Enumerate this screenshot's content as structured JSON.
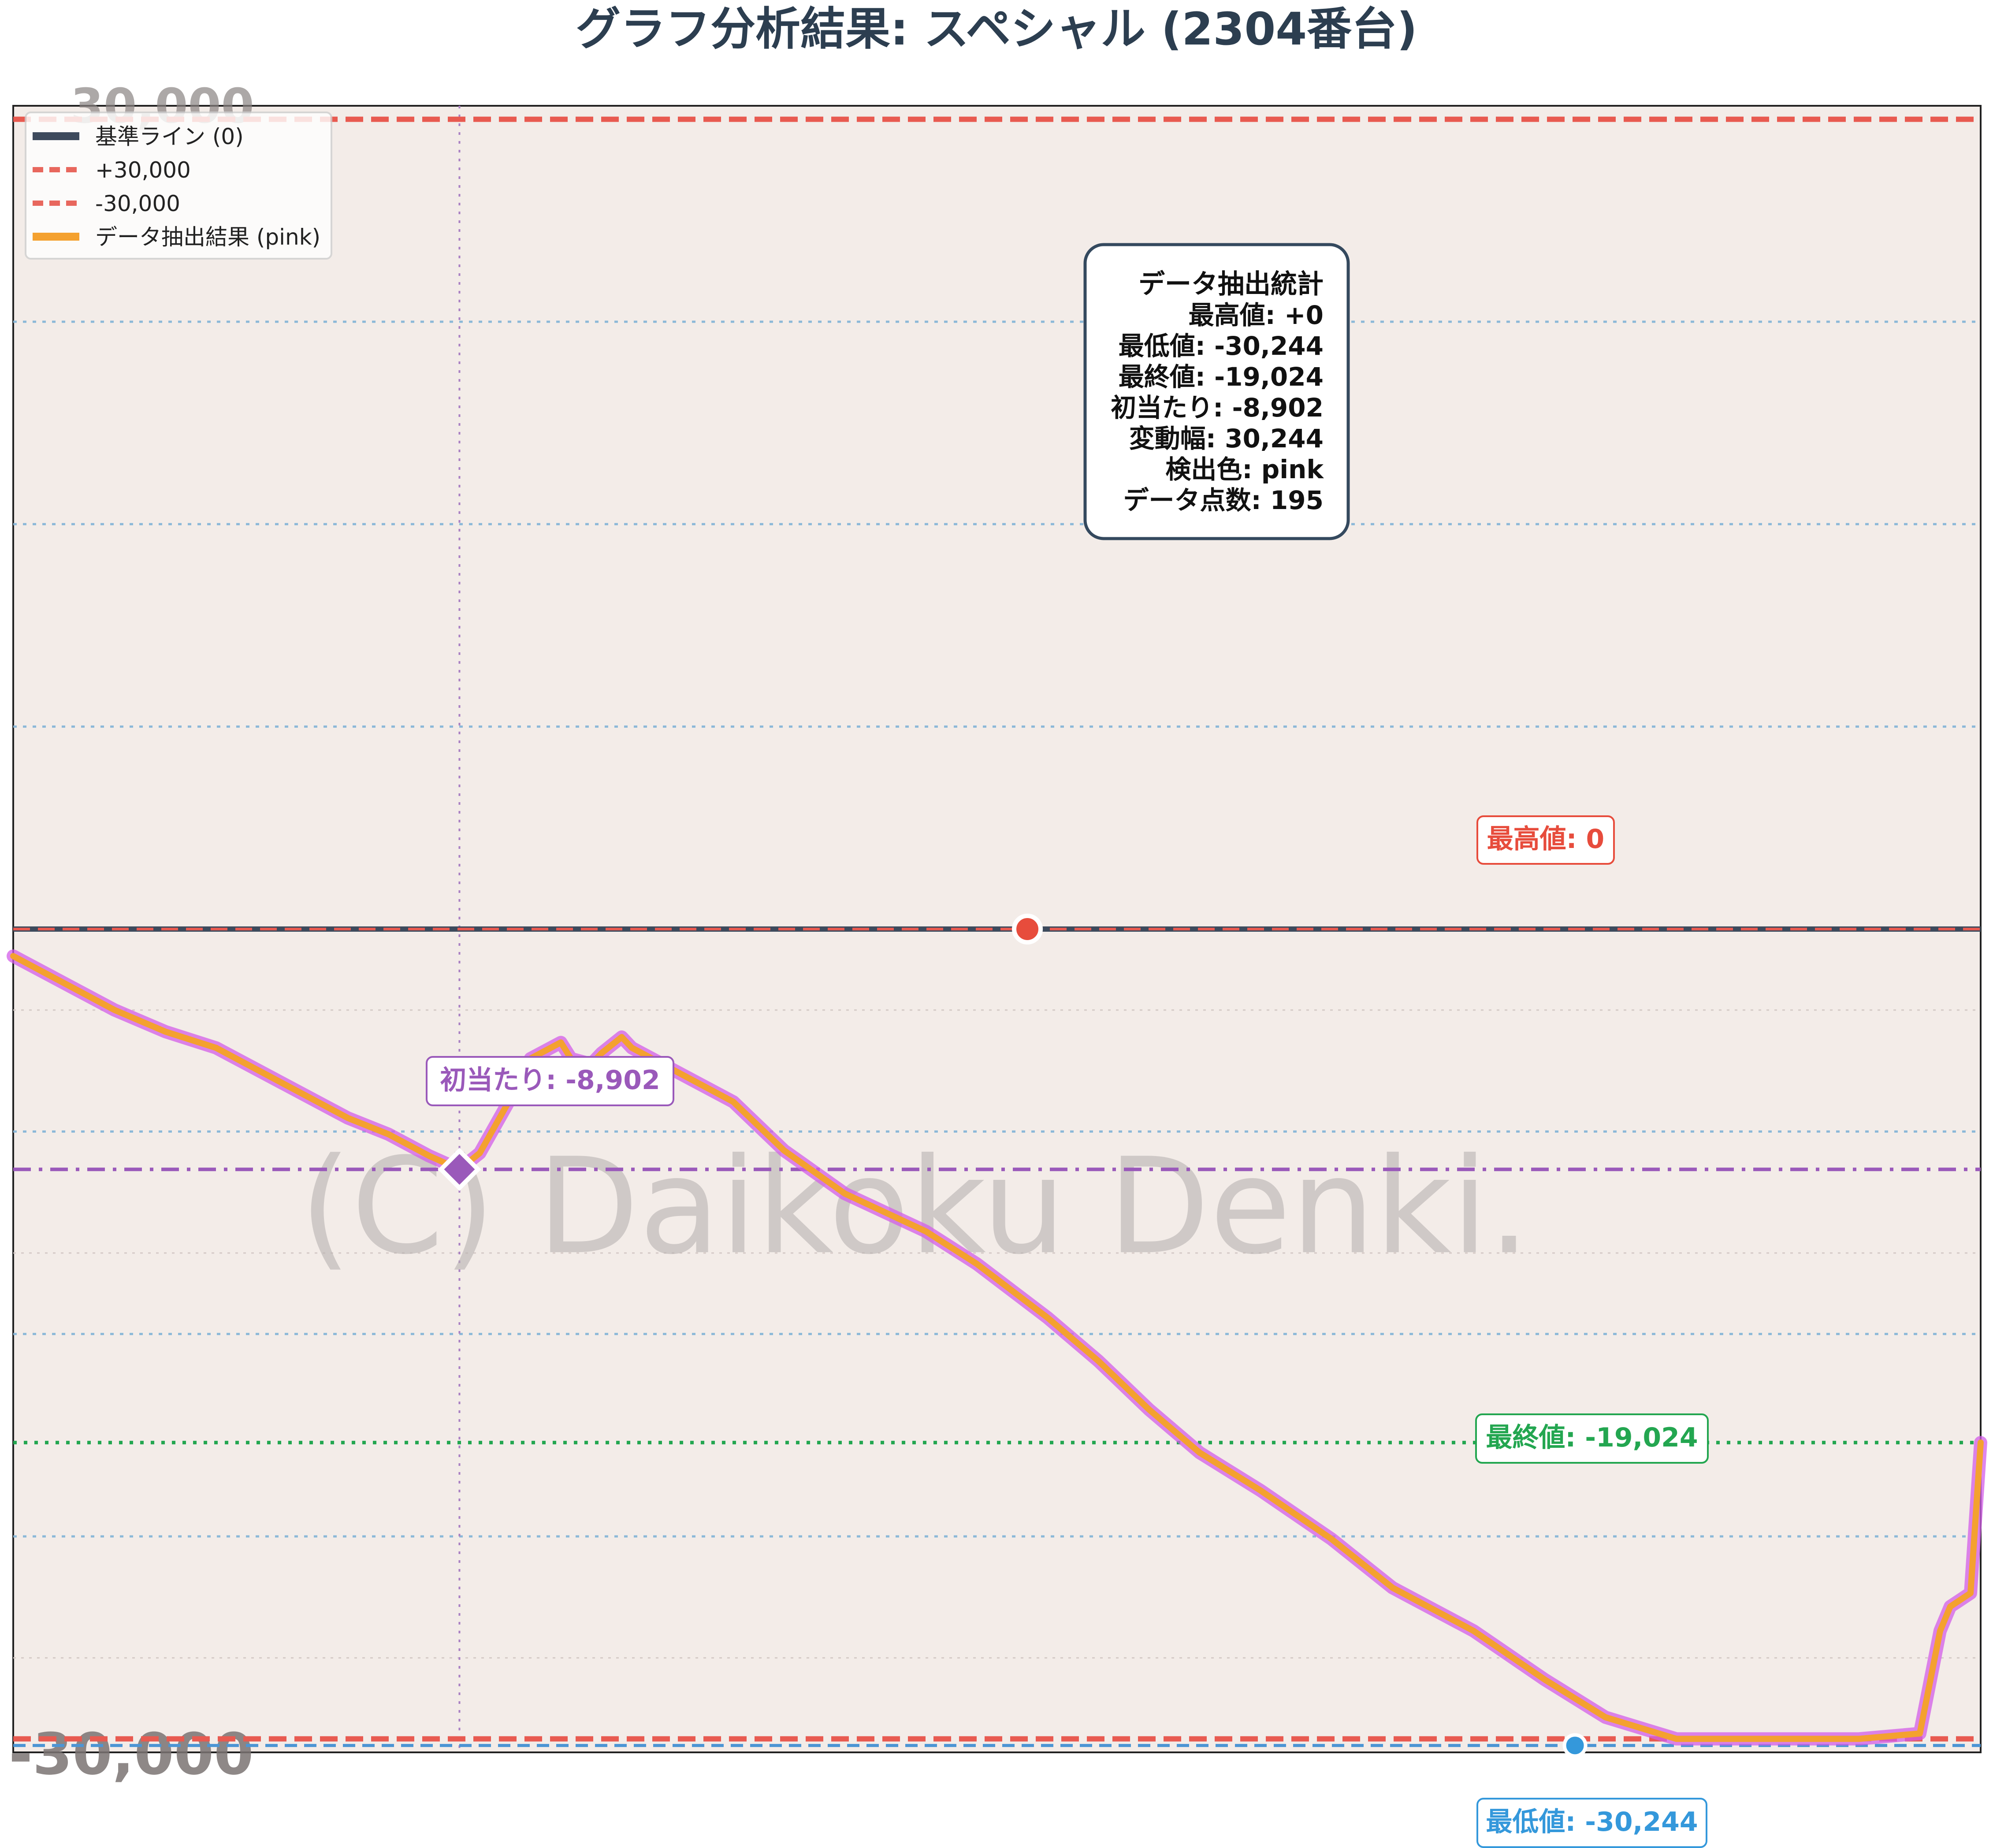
{
  "chart_data": {
    "type": "line",
    "title": "グラフ分析結果: スペシャル (2304番台)",
    "ylim": [
      -30500,
      30500
    ],
    "xlim": [
      0,
      194
    ],
    "grid": true,
    "watermark": "(C) Daikoku Denki.",
    "tick_fragments": {
      "top": "30,000",
      "bottom": "-30,000"
    },
    "legend": {
      "position": "top-left",
      "entries": [
        {
          "label": "基準ライン (0)",
          "color": "#3d4a5c",
          "style": "solid"
        },
        {
          "label": "+30,000",
          "color": "#e8675d",
          "style": "dashed"
        },
        {
          "label": "-30,000",
          "color": "#e8675d",
          "style": "dashed"
        },
        {
          "label": "データ抽出結果 (pink)",
          "color": "#f4a12f",
          "style": "solid"
        }
      ]
    },
    "reference_lines": {
      "baseline": 0,
      "upper": 30000,
      "lower": -30000,
      "first_hit": -8902,
      "final": -19024,
      "minimum": -30244
    },
    "series": [
      {
        "name": "データ抽出結果 (pink)",
        "color": "#f4a12f",
        "glow_color": "#d35ee8",
        "points": [
          [
            0,
            -1000
          ],
          [
            6,
            -2200
          ],
          [
            10,
            -3000
          ],
          [
            15,
            -3800
          ],
          [
            20,
            -4400
          ],
          [
            25,
            -5400
          ],
          [
            30,
            -6400
          ],
          [
            33,
            -7000
          ],
          [
            37,
            -7600
          ],
          [
            41,
            -8400
          ],
          [
            44,
            -8902
          ],
          [
            46,
            -8300
          ],
          [
            49,
            -6300
          ],
          [
            51,
            -4800
          ],
          [
            54,
            -4200
          ],
          [
            55,
            -4800
          ],
          [
            57,
            -5000
          ],
          [
            58,
            -4600
          ],
          [
            60,
            -4000
          ],
          [
            61,
            -4400
          ],
          [
            64,
            -5000
          ],
          [
            67,
            -5600
          ],
          [
            71,
            -6400
          ],
          [
            76,
            -8200
          ],
          [
            82,
            -9800
          ],
          [
            90,
            -11200
          ],
          [
            95,
            -12400
          ],
          [
            102,
            -14400
          ],
          [
            107,
            -16000
          ],
          [
            112,
            -17800
          ],
          [
            117,
            -19400
          ],
          [
            123,
            -20800
          ],
          [
            130,
            -22600
          ],
          [
            136,
            -24400
          ],
          [
            144,
            -26000
          ],
          [
            151,
            -27800
          ],
          [
            157,
            -29200
          ],
          [
            164,
            -30000
          ],
          [
            174,
            -30000
          ],
          [
            182,
            -30000
          ],
          [
            188,
            -29800
          ],
          [
            190,
            -26000
          ],
          [
            191,
            -25100
          ],
          [
            193,
            -24600
          ],
          [
            194,
            -19024
          ]
        ]
      }
    ],
    "markers": {
      "max": {
        "x": 100,
        "y": 0
      },
      "first_hit": {
        "x": 44,
        "y": -8902
      },
      "min": {
        "x": 154,
        "y": -30244
      }
    },
    "annotations": {
      "max_label": "最高値: 0",
      "first_hit_label": "初当たり: -8,902",
      "final_label": "最終値: -19,024",
      "min_label": "最低値: -30,244"
    },
    "stats_box": {
      "title": "データ抽出統計",
      "lines": [
        "最高値: +0",
        "最低値: -30,244",
        "最終値: -19,024",
        "初当たり: -8,902",
        "変動幅: 30,244",
        "検出色: pink",
        "データ点数: 195"
      ]
    }
  }
}
